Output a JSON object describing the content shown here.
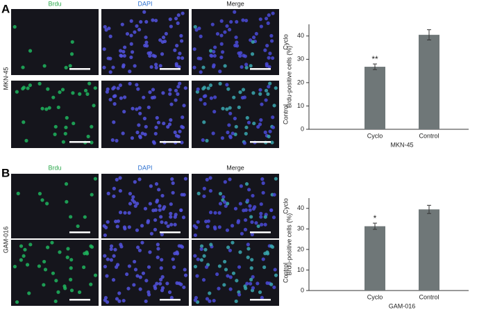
{
  "panels": [
    {
      "label": "A",
      "cell_line": "MKN-45",
      "column_labels": [
        "Brdu",
        "DAPI",
        "Merge"
      ],
      "row_labels": [
        "Cyclo",
        "Control"
      ]
    },
    {
      "label": "B",
      "cell_line": "GAM-016",
      "column_labels": [
        "Brdu",
        "DAPI",
        "Merge"
      ],
      "row_labels": [
        "Cyclo",
        "Control"
      ]
    }
  ],
  "chart_data": [
    {
      "type": "bar",
      "y_label": "Brdu-positive cells (%)",
      "x_label": "MKN-45",
      "categories": [
        "Cyclo",
        "Control"
      ],
      "values": [
        26.8,
        40.5
      ],
      "errors": [
        1.2,
        2.2
      ],
      "significance": [
        "**",
        null
      ],
      "color": "#6f7778",
      "ylim": [
        0,
        45
      ],
      "yticks": [
        0,
        10,
        20,
        30,
        40
      ]
    },
    {
      "type": "bar",
      "y_label": "Brdu-positive cells (%)",
      "x_label": "GAM-016",
      "categories": [
        "Cyclo",
        "Control"
      ],
      "values": [
        31.3,
        39.5
      ],
      "errors": [
        1.5,
        2.0
      ],
      "significance": [
        "*",
        null
      ],
      "color": "#6f7778",
      "ylim": [
        0,
        45
      ],
      "yticks": [
        0,
        10,
        20,
        30,
        40
      ]
    }
  ]
}
